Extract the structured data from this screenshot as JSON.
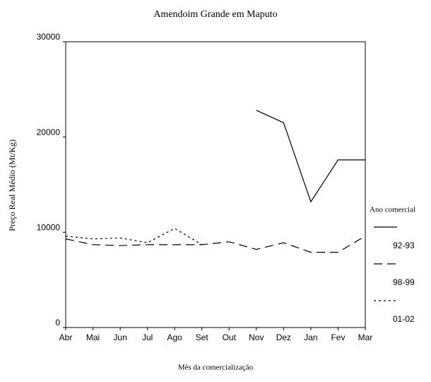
{
  "chart_data": {
    "type": "line",
    "title": "Amendoim Grande em Maputo",
    "x_label": "Mês da comercialização",
    "y_label": "Preço Real Médio (Mt/Kg)",
    "categories": [
      "Abr",
      "Mai",
      "Jun",
      "Jul",
      "Ago",
      "Set",
      "Out",
      "Nov",
      "Dez",
      "Jan",
      "Fev",
      "Mar"
    ],
    "series": [
      {
        "name": "92-93",
        "color": "#000000",
        "dash": "solid",
        "values": [
          null,
          null,
          null,
          null,
          null,
          null,
          null,
          22800,
          21500,
          13200,
          17600,
          17600
        ]
      },
      {
        "name": "98-99",
        "color": "#000000",
        "dash": "dashed",
        "values": [
          9300,
          8700,
          8600,
          8700,
          8700,
          8700,
          9000,
          8200,
          8900,
          7900,
          7900,
          9600
        ]
      },
      {
        "name": "01-02",
        "color": "#000000",
        "dash": "dotted",
        "values": [
          9600,
          9300,
          9400,
          8900,
          10400,
          8700,
          null,
          null,
          null,
          null,
          null,
          null
        ]
      }
    ],
    "ylim": [
      0,
      30000
    ],
    "yticks": [
      0,
      10000,
      20000,
      30000
    ],
    "grid": false,
    "legend_title": "Ano comercial",
    "legend": "right"
  }
}
